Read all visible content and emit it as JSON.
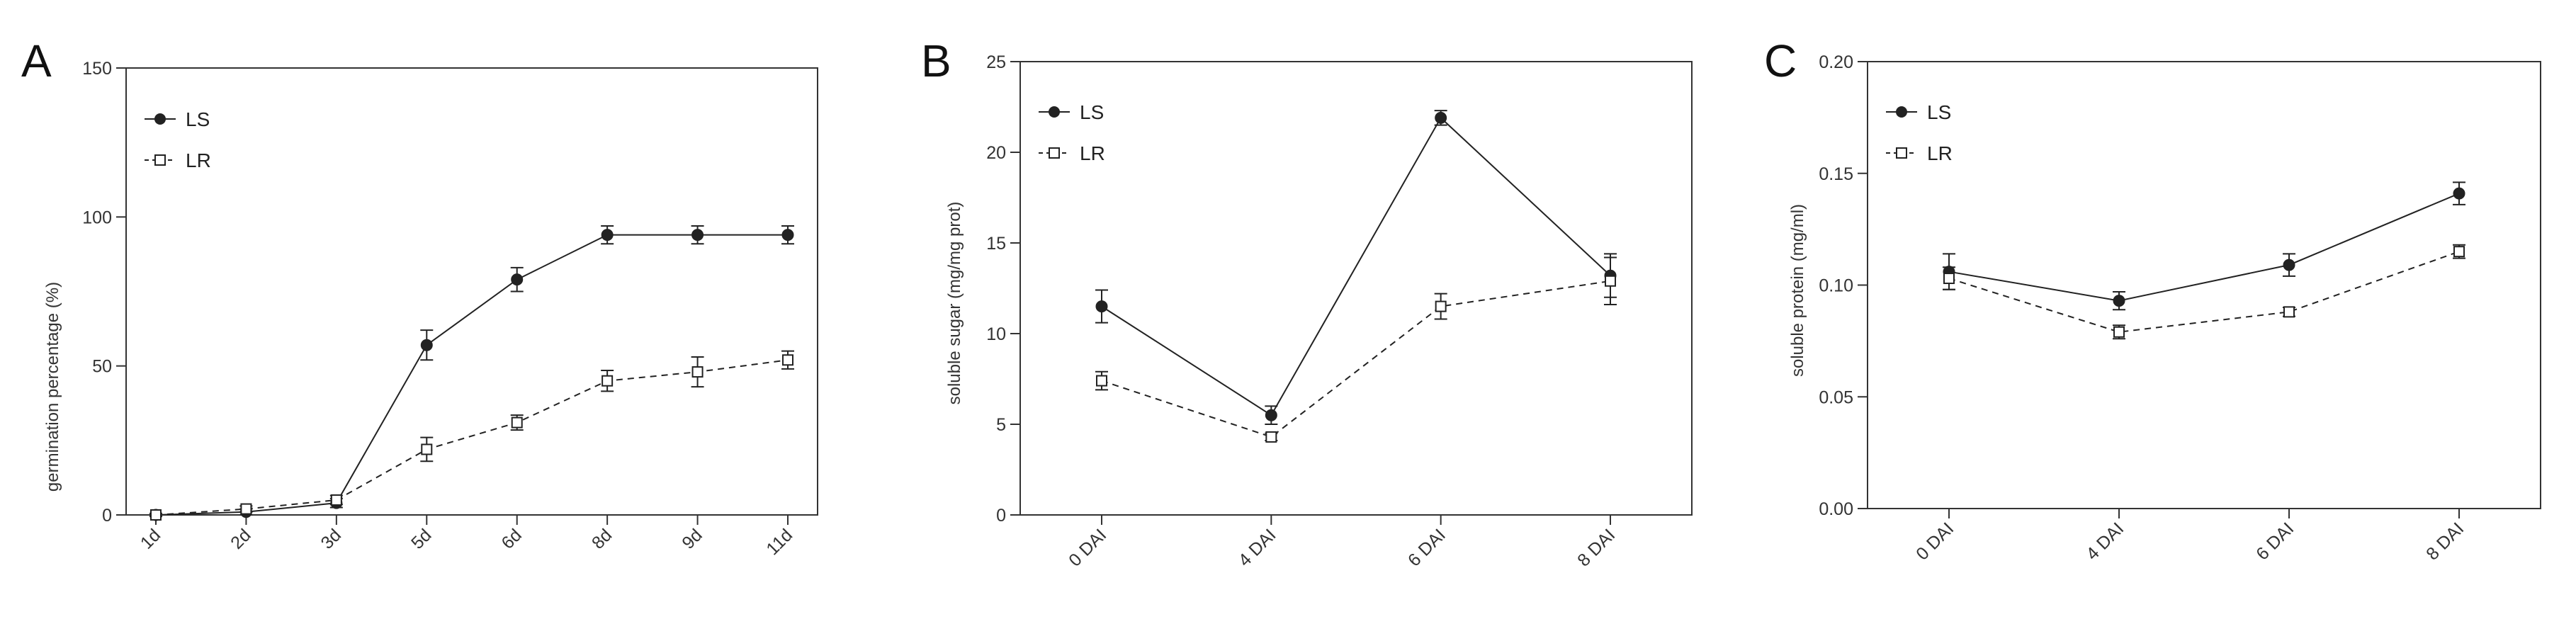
{
  "figure": {
    "panel_letters": [
      "A",
      "B",
      "C"
    ]
  },
  "chart_data": [
    {
      "panel": "A",
      "type": "line",
      "categories": [
        "1d",
        "2d",
        "3d",
        "5d",
        "6d",
        "8d",
        "9d",
        "11d"
      ],
      "ylabel": "germination percentage (%)",
      "ylim": [
        0,
        150
      ],
      "yticks": [
        0,
        50,
        100,
        150
      ],
      "grid": false,
      "legend_position": "top-left",
      "series": [
        {
          "name": "LS",
          "marker": "filled-circle",
          "line": "solid",
          "values": [
            0,
            1,
            4,
            57,
            79,
            94,
            94,
            94
          ],
          "errors": [
            0.5,
            1,
            1.5,
            5,
            4,
            3,
            3,
            3
          ]
        },
        {
          "name": "LR",
          "marker": "open-square",
          "line": "dashed",
          "values": [
            0,
            2,
            5,
            22,
            31,
            45,
            48,
            52
          ],
          "errors": [
            0.5,
            1,
            1.5,
            4,
            2.5,
            3.5,
            5,
            3
          ]
        }
      ]
    },
    {
      "panel": "B",
      "type": "line",
      "categories": [
        "0 DAI",
        "4 DAI",
        "6 DAI",
        "8 DAI"
      ],
      "ylabel": "soluble sugar (mg/mg prot)",
      "ylim": [
        0,
        25
      ],
      "yticks": [
        0,
        5,
        10,
        15,
        20,
        25
      ],
      "grid": false,
      "legend_position": "top-left",
      "series": [
        {
          "name": "LS",
          "marker": "filled-circle",
          "line": "solid",
          "values": [
            11.5,
            5.5,
            21.9,
            13.2
          ],
          "errors": [
            0.9,
            0.5,
            0.4,
            1.2
          ]
        },
        {
          "name": "LR",
          "marker": "open-square",
          "line": "dashed",
          "values": [
            7.4,
            4.3,
            11.5,
            12.9
          ],
          "errors": [
            0.5,
            0.2,
            0.7,
            1.3
          ]
        }
      ]
    },
    {
      "panel": "C",
      "type": "line",
      "categories": [
        "0 DAI",
        "4 DAI",
        "6 DAI",
        "8 DAI"
      ],
      "ylabel": "soluble protein (mg/ml)",
      "ylim": [
        0,
        0.2
      ],
      "yticks": [
        "0.00",
        "0.05",
        "0.10",
        "0.15",
        "0.20"
      ],
      "grid": false,
      "legend_position": "top-left",
      "series": [
        {
          "name": "LS",
          "marker": "filled-circle",
          "line": "solid",
          "values": [
            0.106,
            0.093,
            0.109,
            0.141
          ],
          "errors": [
            0.008,
            0.004,
            0.005,
            0.005
          ]
        },
        {
          "name": "LR",
          "marker": "open-square",
          "line": "dashed",
          "values": [
            0.103,
            0.079,
            0.088,
            0.115
          ],
          "errors": [
            0.005,
            0.003,
            0.002,
            0.003
          ]
        }
      ]
    }
  ],
  "colors": {
    "line": "#222222",
    "axis": "#333333",
    "background": "#ffffff"
  }
}
